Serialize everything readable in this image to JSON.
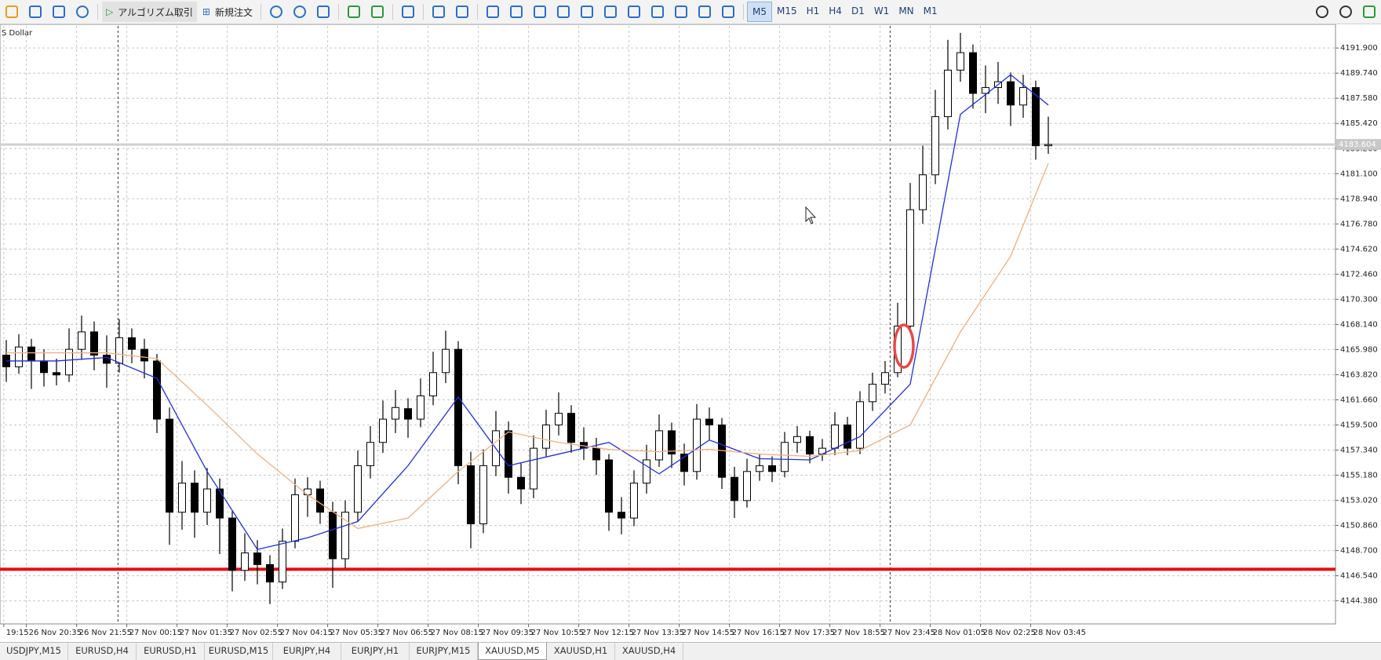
{
  "toolbar": {
    "buttons": [
      "アルゴリズム取引",
      "新規注文"
    ],
    "timeframes": [
      "M5",
      "M15",
      "H1",
      "H4",
      "D1",
      "W1",
      "MN",
      "M1"
    ],
    "active_timeframe": 0
  },
  "tabs": {
    "items": [
      "USDJPY,M15",
      "EURUSD,H4",
      "EURUSD,H1",
      "EURUSD,M15",
      "EURJPY,H4",
      "EURJPY,H1",
      "EURJPY,M15",
      "XAUUSD,M5",
      "XAUUSD,H1",
      "XAUUSD,H4"
    ],
    "active": 7
  },
  "chart_data": {
    "type": "candlestick",
    "title": "S Dollar",
    "up_color": "#ffffff",
    "down_color": "#000000",
    "grid": true,
    "ylim": [
      4142.4,
      4193.8
    ],
    "yticks": [
      {
        "value": 4191.9,
        "label": "4191.900"
      },
      {
        "value": 4189.74,
        "label": "4189.740"
      },
      {
        "value": 4187.58,
        "label": "4187.580"
      },
      {
        "value": 4185.42,
        "label": "4185.420"
      },
      {
        "value": 4183.26,
        "label": "4183.260"
      },
      {
        "value": 4181.1,
        "label": "4181.100"
      },
      {
        "value": 4178.94,
        "label": "4178.940"
      },
      {
        "value": 4176.78,
        "label": "4176.780"
      },
      {
        "value": 4174.62,
        "label": "4174.620"
      },
      {
        "value": 4172.46,
        "label": "4172.460"
      },
      {
        "value": 4170.3,
        "label": "4170.300"
      },
      {
        "value": 4168.14,
        "label": "4168.140"
      },
      {
        "value": 4165.98,
        "label": "4165.980"
      },
      {
        "value": 4163.82,
        "label": "4163.820"
      },
      {
        "value": 4161.66,
        "label": "4161.660"
      },
      {
        "value": 4159.5,
        "label": "4159.500"
      },
      {
        "value": 4157.34,
        "label": "4157.340"
      },
      {
        "value": 4155.18,
        "label": "4155.180"
      },
      {
        "value": 4153.02,
        "label": "4153.020"
      },
      {
        "value": 4150.86,
        "label": "4150.860"
      },
      {
        "value": 4148.7,
        "label": "4148.700"
      },
      {
        "value": 4146.54,
        "label": "4146.540"
      },
      {
        "value": 4144.38,
        "label": "4144.380"
      }
    ],
    "xticks": [
      {
        "value": -0.2,
        "label": "19:15"
      },
      {
        "value": 1.6,
        "label": "26 Nov 20:35"
      },
      {
        "value": 5.6,
        "label": "26 Nov 21:55"
      },
      {
        "value": 9.6,
        "label": "27 Nov 00:15"
      },
      {
        "value": 13.6,
        "label": "27 Nov 01:35"
      },
      {
        "value": 17.6,
        "label": "27 Nov 02:55"
      },
      {
        "value": 21.6,
        "label": "27 Nov 04:15"
      },
      {
        "value": 25.6,
        "label": "27 Nov 05:35"
      },
      {
        "value": 29.6,
        "label": "27 Nov 06:55"
      },
      {
        "value": 33.6,
        "label": "27 Nov 08:15"
      },
      {
        "value": 37.6,
        "label": "27 Nov 09:35"
      },
      {
        "value": 41.6,
        "label": "27 Nov 10:55"
      },
      {
        "value": 45.6,
        "label": "27 Nov 12:15"
      },
      {
        "value": 49.6,
        "label": "27 Nov 13:35"
      },
      {
        "value": 53.6,
        "label": "27 Nov 14:55"
      },
      {
        "value": 57.6,
        "label": "27 Nov 16:15"
      },
      {
        "value": 61.6,
        "label": "27 Nov 17:35"
      },
      {
        "value": 65.6,
        "label": "27 Nov 18:55"
      },
      {
        "value": 69.6,
        "label": "27 Nov 23:45"
      },
      {
        "value": 73.6,
        "label": "28 Nov 01:05"
      },
      {
        "value": 77.6,
        "label": "28 Nov 02:25"
      },
      {
        "value": 81.6,
        "label": "28 Nov 03:45"
      }
    ],
    "candles": [
      [
        4165.5,
        4166.8,
        4163.2,
        4164.5
      ],
      [
        4164.5,
        4167.3,
        4163.9,
        4166.2
      ],
      [
        4166.2,
        4166.9,
        4162.6,
        4165.0
      ],
      [
        4165.0,
        4166.0,
        4162.8,
        4164.0
      ],
      [
        4164.0,
        4165.2,
        4162.9,
        4163.8
      ],
      [
        4163.8,
        4167.8,
        4163.2,
        4166.0
      ],
      [
        4166.0,
        4168.9,
        4165.1,
        4167.5
      ],
      [
        4167.5,
        4168.4,
        4164.2,
        4165.5
      ],
      [
        4165.5,
        4167.2,
        4162.7,
        4164.8
      ],
      [
        4164.8,
        4168.6,
        4164.0,
        4167.0
      ],
      [
        4167.0,
        4167.8,
        4164.8,
        4166.0
      ],
      [
        4166.0,
        4166.9,
        4163.5,
        4165.0
      ],
      [
        4165.0,
        4165.6,
        4158.8,
        4160.0
      ],
      [
        4160.0,
        4161.0,
        4149.2,
        4152.0
      ],
      [
        4152.0,
        4156.4,
        4150.5,
        4154.5
      ],
      [
        4154.5,
        4155.6,
        4149.8,
        4152.0
      ],
      [
        4152.0,
        4155.8,
        4150.9,
        4154.0
      ],
      [
        4154.0,
        4154.9,
        4148.4,
        4151.5
      ],
      [
        4151.5,
        4152.1,
        4145.2,
        4147.0
      ],
      [
        4147.0,
        4150.2,
        4146.1,
        4148.5
      ],
      [
        4148.5,
        4149.6,
        4145.8,
        4147.5
      ],
      [
        4147.5,
        4148.3,
        4144.1,
        4146.0
      ],
      [
        4146.0,
        4150.6,
        4145.4,
        4149.5
      ],
      [
        4149.5,
        4154.9,
        4148.9,
        4153.5
      ],
      [
        4153.5,
        4155.0,
        4151.6,
        4154.0
      ],
      [
        4154.0,
        4154.7,
        4151.0,
        4152.0
      ],
      [
        4152.0,
        4152.9,
        4145.5,
        4148.0
      ],
      [
        4148.0,
        4153.0,
        4147.2,
        4152.0
      ],
      [
        4152.0,
        4157.3,
        4151.2,
        4156.0
      ],
      [
        4156.0,
        4159.4,
        4154.9,
        4158.0
      ],
      [
        4158.0,
        4161.6,
        4157.1,
        4160.0
      ],
      [
        4160.0,
        4162.5,
        4158.8,
        4161.0
      ],
      [
        4160.9,
        4161.8,
        4158.4,
        4160.0
      ],
      [
        4160.0,
        4163.5,
        4159.3,
        4162.0
      ],
      [
        4162.0,
        4165.8,
        4161.2,
        4164.0
      ],
      [
        4164.0,
        4167.6,
        4163.1,
        4166.0
      ],
      [
        4166.0,
        4166.7,
        4154.4,
        4156.0
      ],
      [
        4156.0,
        4157.2,
        4148.9,
        4151.0
      ],
      [
        4151.0,
        4157.4,
        4150.2,
        4156.0
      ],
      [
        4156.0,
        4160.7,
        4155.1,
        4159.0
      ],
      [
        4159.0,
        4159.8,
        4153.6,
        4155.0
      ],
      [
        4155.0,
        4156.2,
        4152.7,
        4154.0
      ],
      [
        4154.0,
        4158.6,
        4153.2,
        4157.5
      ],
      [
        4157.5,
        4160.8,
        4156.8,
        4159.5
      ],
      [
        4159.5,
        4162.3,
        4158.6,
        4160.5
      ],
      [
        4160.5,
        4161.2,
        4157.1,
        4158.0
      ],
      [
        4158.0,
        4159.3,
        4156.5,
        4157.5
      ],
      [
        4157.5,
        4158.4,
        4155.2,
        4156.5
      ],
      [
        4156.5,
        4157.0,
        4150.4,
        4152.0
      ],
      [
        4152.0,
        4153.3,
        4150.1,
        4151.5
      ],
      [
        4151.5,
        4155.6,
        4150.8,
        4154.5
      ],
      [
        4154.5,
        4157.8,
        4153.6,
        4156.5
      ],
      [
        4156.5,
        4160.4,
        4155.9,
        4159.0
      ],
      [
        4159.0,
        4159.7,
        4155.8,
        4157.0
      ],
      [
        4157.0,
        4157.9,
        4154.3,
        4155.5
      ],
      [
        4155.5,
        4161.3,
        4154.8,
        4160.0
      ],
      [
        4160.0,
        4161.0,
        4158.2,
        4159.5
      ],
      [
        4159.5,
        4160.1,
        4154.0,
        4155.0
      ],
      [
        4155.0,
        4155.9,
        4151.5,
        4153.0
      ],
      [
        4153.0,
        4156.6,
        4152.4,
        4155.5
      ],
      [
        4155.5,
        4157.0,
        4154.7,
        4156.0
      ],
      [
        4156.0,
        4156.8,
        4154.6,
        4155.5
      ],
      [
        4155.5,
        4158.9,
        4155.0,
        4158.0
      ],
      [
        4158.0,
        4159.4,
        4157.1,
        4158.5
      ],
      [
        4158.5,
        4159.0,
        4156.2,
        4157.0
      ],
      [
        4157.0,
        4158.3,
        4156.4,
        4157.5
      ],
      [
        4157.5,
        4160.6,
        4156.9,
        4159.5
      ],
      [
        4159.5,
        4160.2,
        4156.9,
        4157.5
      ],
      [
        4157.5,
        4162.4,
        4157.0,
        4161.5
      ],
      [
        4161.5,
        4164.0,
        4160.7,
        4163.0
      ],
      [
        4163.0,
        4165.0,
        4162.2,
        4164.0
      ],
      [
        4164.0,
        4170.0,
        4163.6,
        4168.0
      ],
      [
        4168.0,
        4180.3,
        4167.4,
        4178.0
      ],
      [
        4178.0,
        4183.5,
        4176.8,
        4181.0
      ],
      [
        4181.0,
        4188.3,
        4180.2,
        4186.0
      ],
      [
        4186.0,
        4192.6,
        4184.9,
        4190.0
      ],
      [
        4190.0,
        4193.2,
        4189.0,
        4191.5
      ],
      [
        4191.5,
        4192.2,
        4186.7,
        4188.0
      ],
      [
        4188.0,
        4190.4,
        4186.3,
        4188.5
      ],
      [
        4188.5,
        4190.7,
        4187.1,
        4189.0
      ],
      [
        4189.0,
        4189.8,
        4185.2,
        4187.0
      ],
      [
        4187.0,
        4189.6,
        4185.9,
        4188.5
      ],
      [
        4188.5,
        4189.1,
        4182.3,
        4183.5
      ],
      [
        4183.5,
        4186.0,
        4182.8,
        4183.6
      ]
    ],
    "series": [
      {
        "color": "#1f2fe0",
        "x": [
          0,
          4,
          8,
          12,
          16,
          20,
          24,
          28,
          32,
          36,
          40,
          44,
          48,
          52,
          56,
          60,
          64,
          68,
          72,
          76,
          80,
          83
        ],
        "values": [
          4165.0,
          4165.0,
          4165.3,
          4163.5,
          4155.5,
          4148.8,
          4149.8,
          4151.2,
          4156.0,
          4161.9,
          4156.0,
          4157.0,
          4158.0,
          4155.3,
          4158.2,
          4156.6,
          4156.5,
          4158.5,
          4163.0,
          4186.2,
          4189.6,
          4187.0
        ]
      },
      {
        "color": "#f0b080",
        "x": [
          0,
          4,
          8,
          12,
          16,
          20,
          24,
          28,
          32,
          36,
          40,
          44,
          48,
          52,
          56,
          60,
          64,
          68,
          72,
          76,
          80,
          83
        ],
        "values": [
          4165.7,
          4165.7,
          4165.7,
          4165.2,
          4161.2,
          4157.0,
          4153.5,
          4150.6,
          4151.5,
          4155.5,
          4158.9,
          4158.0,
          4157.4,
          4157.2,
          4157.4,
          4157.0,
          4156.8,
          4157.3,
          4159.5,
          4167.5,
          4174.0,
          4182.0
        ]
      }
    ],
    "hlines": [
      {
        "value": 4147.1,
        "color": "#e01010"
      }
    ],
    "last_price": {
      "value": 4183.604,
      "label": "4183.604"
    },
    "vlines": [
      8.9,
      70.4
    ]
  }
}
